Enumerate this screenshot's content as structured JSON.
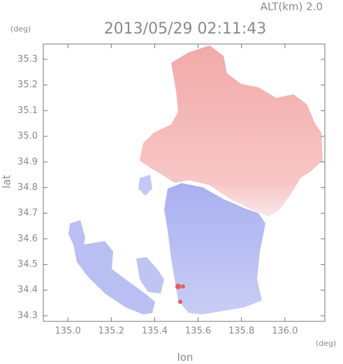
{
  "chart_data": {
    "type": "map",
    "title": "2013/05/29 02:11:43",
    "subtitle": "ALT(km) 2.0",
    "xlabel": "lon",
    "ylabel": "lat",
    "xlabel_unit": "(deg)",
    "ylabel_unit": "(deg)",
    "xlim": [
      134.887,
      136.184
    ],
    "ylim": [
      34.278,
      35.36
    ],
    "xticks": [
      {
        "value": 135.0,
        "label": "135.0"
      },
      135.2,
      135.4,
      135.6,
      135.8,
      {
        "value": 136.0,
        "label": "136.0"
      }
    ],
    "yticks": [
      34.3,
      34.4,
      34.5,
      34.6,
      34.7,
      34.8,
      34.9,
      {
        "value": 35.0,
        "label": "35.0"
      },
      35.1,
      35.2,
      35.3
    ]
  }
}
